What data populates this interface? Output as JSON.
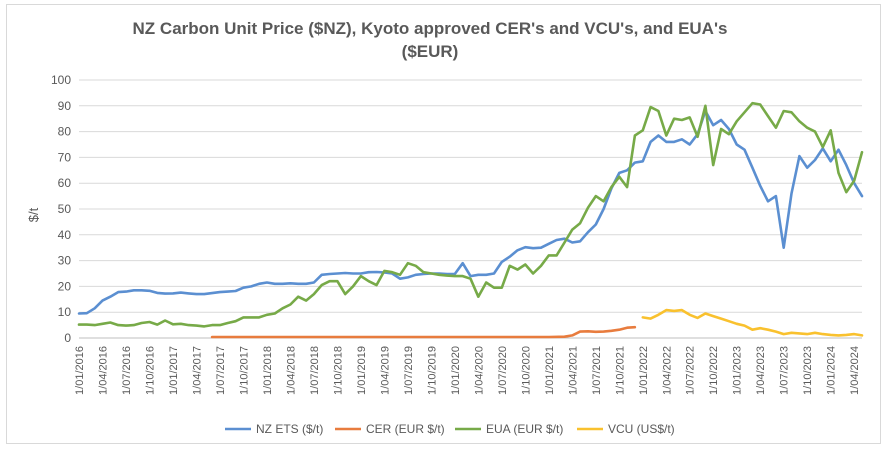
{
  "chart_data": {
    "type": "line",
    "title_line1": "NZ Carbon Unit Price ($NZ), Kyoto approved CER's and VCU's, and EUA's",
    "title_line2": "($EUR)",
    "ylabel": "$/t",
    "xlabel": "",
    "ylim": [
      0,
      100
    ],
    "yticks": [
      0,
      10,
      20,
      30,
      40,
      50,
      60,
      70,
      80,
      90,
      100
    ],
    "grid": true,
    "legend_position": "bottom",
    "x_start_month_index": 0,
    "x_end_month_index": 99,
    "x_tick_labels": [
      "1/01/2016",
      "1/04/2016",
      "1/07/2016",
      "1/10/2016",
      "1/01/2017",
      "1/04/2017",
      "1/07/2017",
      "1/10/2017",
      "1/01/2018",
      "1/04/2018",
      "1/07/2018",
      "1/10/2018",
      "1/01/2019",
      "1/04/2019",
      "1/07/2019",
      "1/10/2019",
      "1/01/2020",
      "1/04/2020",
      "1/07/2020",
      "1/10/2020",
      "1/01/2021",
      "1/04/2021",
      "1/07/2021",
      "1/10/2021",
      "1/01/2022",
      "1/04/2022",
      "1/07/2022",
      "1/10/2022",
      "1/01/2023",
      "1/04/2023",
      "1/07/2023",
      "1/10/2023",
      "1/01/2024",
      "1/04/2024"
    ],
    "x_tick_month_index": [
      0,
      3,
      6,
      9,
      12,
      15,
      18,
      21,
      24,
      27,
      30,
      33,
      36,
      39,
      42,
      45,
      48,
      51,
      54,
      57,
      60,
      63,
      66,
      69,
      72,
      75,
      78,
      81,
      84,
      87,
      90,
      93,
      96,
      99
    ],
    "series": [
      {
        "name": "NZ ETS ($/t)",
        "color": "#5b8fd1",
        "points": [
          [
            0,
            9.5
          ],
          [
            1,
            9.6
          ],
          [
            2,
            11.5
          ],
          [
            3,
            14.5
          ],
          [
            4,
            16
          ],
          [
            5,
            17.8
          ],
          [
            6,
            18
          ],
          [
            7,
            18.5
          ],
          [
            8,
            18.5
          ],
          [
            9,
            18.3
          ],
          [
            10,
            17.5
          ],
          [
            11,
            17.2
          ],
          [
            12,
            17.3
          ],
          [
            13,
            17.6
          ],
          [
            14,
            17.3
          ],
          [
            15,
            17
          ],
          [
            16,
            17
          ],
          [
            17,
            17.4
          ],
          [
            18,
            17.8
          ],
          [
            19,
            18
          ],
          [
            20,
            18.2
          ],
          [
            21,
            19.5
          ],
          [
            22,
            20
          ],
          [
            23,
            21
          ],
          [
            24,
            21.5
          ],
          [
            25,
            21
          ],
          [
            26,
            21
          ],
          [
            27,
            21.2
          ],
          [
            28,
            21
          ],
          [
            29,
            21
          ],
          [
            30,
            21.5
          ],
          [
            31,
            24.5
          ],
          [
            32,
            24.8
          ],
          [
            33,
            25
          ],
          [
            34,
            25.2
          ],
          [
            35,
            25
          ],
          [
            36,
            25
          ],
          [
            37,
            25.5
          ],
          [
            38,
            25.6
          ],
          [
            39,
            25.4
          ],
          [
            40,
            25
          ],
          [
            41,
            23
          ],
          [
            42,
            23.5
          ],
          [
            43,
            24.5
          ],
          [
            44,
            24.8
          ],
          [
            45,
            25
          ],
          [
            46,
            25
          ],
          [
            47,
            24.8
          ],
          [
            48,
            24.8
          ],
          [
            49,
            29
          ],
          [
            50,
            24
          ],
          [
            51,
            24.5
          ],
          [
            52,
            24.5
          ],
          [
            53,
            25
          ],
          [
            54,
            29.5
          ],
          [
            55,
            31.5
          ],
          [
            56,
            34
          ],
          [
            57,
            35.2
          ],
          [
            58,
            34.8
          ],
          [
            59,
            35
          ],
          [
            60,
            36.5
          ],
          [
            61,
            38
          ],
          [
            62,
            38.5
          ],
          [
            63,
            37
          ],
          [
            64,
            37.5
          ],
          [
            65,
            41
          ],
          [
            66,
            44
          ],
          [
            67,
            50
          ],
          [
            68,
            58
          ],
          [
            69,
            64
          ],
          [
            70,
            65
          ],
          [
            71,
            68
          ],
          [
            72,
            68.5
          ],
          [
            73,
            76
          ],
          [
            74,
            78.5
          ],
          [
            75,
            76
          ],
          [
            76,
            76
          ],
          [
            77,
            77
          ],
          [
            78,
            75
          ],
          [
            79,
            79
          ],
          [
            80,
            88
          ],
          [
            81,
            82.5
          ],
          [
            82,
            84.5
          ],
          [
            83,
            81
          ],
          [
            84,
            75
          ],
          [
            85,
            73
          ],
          [
            86,
            66
          ],
          [
            87,
            59
          ],
          [
            88,
            53
          ],
          [
            89,
            55
          ],
          [
            90,
            35
          ],
          [
            91,
            56
          ],
          [
            92,
            70.5
          ],
          [
            93,
            66
          ],
          [
            94,
            69
          ],
          [
            95,
            73.5
          ],
          [
            96,
            68.5
          ],
          [
            97,
            73
          ],
          [
            98,
            67
          ],
          [
            99,
            60
          ],
          [
            100,
            55
          ]
        ]
      },
      {
        "name": "CER (EUR $/t)",
        "color": "#e87c3e",
        "points": [
          [
            17,
            0.4
          ],
          [
            20,
            0.4
          ],
          [
            25,
            0.4
          ],
          [
            30,
            0.4
          ],
          [
            35,
            0.4
          ],
          [
            40,
            0.4
          ],
          [
            45,
            0.4
          ],
          [
            50,
            0.4
          ],
          [
            55,
            0.4
          ],
          [
            60,
            0.4
          ],
          [
            62,
            0.5
          ],
          [
            63,
            1
          ],
          [
            64,
            2.5
          ],
          [
            65,
            2.6
          ],
          [
            66,
            2.4
          ],
          [
            67,
            2.5
          ],
          [
            68,
            2.8
          ],
          [
            69,
            3.2
          ],
          [
            70,
            4
          ],
          [
            71,
            4.2
          ]
        ]
      },
      {
        "name": "EUA (EUR $/t)",
        "color": "#77aa48",
        "points": [
          [
            0,
            5.2
          ],
          [
            1,
            5.2
          ],
          [
            2,
            5
          ],
          [
            3,
            5.5
          ],
          [
            4,
            6
          ],
          [
            5,
            5
          ],
          [
            6,
            4.8
          ],
          [
            7,
            5
          ],
          [
            8,
            5.8
          ],
          [
            9,
            6.2
          ],
          [
            10,
            5.2
          ],
          [
            11,
            6.8
          ],
          [
            12,
            5.3
          ],
          [
            13,
            5.5
          ],
          [
            14,
            5
          ],
          [
            15,
            4.8
          ],
          [
            16,
            4.5
          ],
          [
            17,
            5
          ],
          [
            18,
            5
          ],
          [
            19,
            5.8
          ],
          [
            20,
            6.5
          ],
          [
            21,
            8
          ],
          [
            22,
            8
          ],
          [
            23,
            8
          ],
          [
            24,
            9
          ],
          [
            25,
            9.5
          ],
          [
            26,
            11.5
          ],
          [
            27,
            13
          ],
          [
            28,
            16
          ],
          [
            29,
            14.5
          ],
          [
            30,
            17
          ],
          [
            31,
            20.5
          ],
          [
            32,
            22
          ],
          [
            33,
            22
          ],
          [
            34,
            17
          ],
          [
            35,
            20
          ],
          [
            36,
            24
          ],
          [
            37,
            22
          ],
          [
            38,
            20.5
          ],
          [
            39,
            26
          ],
          [
            40,
            25.5
          ],
          [
            41,
            24.5
          ],
          [
            42,
            29
          ],
          [
            43,
            28
          ],
          [
            44,
            25.5
          ],
          [
            45,
            25
          ],
          [
            46,
            24.5
          ],
          [
            47,
            24.2
          ],
          [
            48,
            24
          ],
          [
            49,
            24
          ],
          [
            50,
            23
          ],
          [
            51,
            16
          ],
          [
            52,
            21.5
          ],
          [
            53,
            19.5
          ],
          [
            54,
            19.5
          ],
          [
            55,
            28
          ],
          [
            56,
            26.5
          ],
          [
            57,
            28.5
          ],
          [
            58,
            25
          ],
          [
            59,
            28
          ],
          [
            60,
            32
          ],
          [
            61,
            32
          ],
          [
            62,
            37
          ],
          [
            63,
            42
          ],
          [
            64,
            44.5
          ],
          [
            65,
            50.5
          ],
          [
            66,
            55
          ],
          [
            67,
            53
          ],
          [
            68,
            58.5
          ],
          [
            69,
            62.5
          ],
          [
            70,
            58.5
          ],
          [
            71,
            78.5
          ],
          [
            72,
            80.5
          ],
          [
            73,
            89.5
          ],
          [
            74,
            88
          ],
          [
            75,
            78.5
          ],
          [
            76,
            85
          ],
          [
            77,
            84.5
          ],
          [
            78,
            85.5
          ],
          [
            79,
            78
          ],
          [
            80,
            90
          ],
          [
            81,
            67
          ],
          [
            82,
            81
          ],
          [
            83,
            79
          ],
          [
            84,
            84
          ],
          [
            85,
            87.5
          ],
          [
            86,
            91
          ],
          [
            87,
            90.5
          ],
          [
            88,
            86
          ],
          [
            89,
            81.5
          ],
          [
            90,
            88
          ],
          [
            91,
            87.5
          ],
          [
            92,
            84
          ],
          [
            93,
            81.5
          ],
          [
            94,
            80
          ],
          [
            95,
            74
          ],
          [
            96,
            80.5
          ],
          [
            97,
            64
          ],
          [
            98,
            56.5
          ],
          [
            99,
            61
          ],
          [
            100,
            72
          ]
        ]
      },
      {
        "name": "VCU (US$/t)",
        "color": "#f9c12e",
        "points": [
          [
            72,
            8
          ],
          [
            73,
            7.5
          ],
          [
            74,
            9
          ],
          [
            75,
            10.8
          ],
          [
            76,
            10.5
          ],
          [
            77,
            10.8
          ],
          [
            78,
            9
          ],
          [
            79,
            7.8
          ],
          [
            80,
            9.5
          ],
          [
            81,
            8.5
          ],
          [
            82,
            7.5
          ],
          [
            83,
            6.5
          ],
          [
            84,
            5.5
          ],
          [
            85,
            4.8
          ],
          [
            86,
            3.2
          ],
          [
            87,
            3.8
          ],
          [
            88,
            3.2
          ],
          [
            89,
            2.5
          ],
          [
            90,
            1.5
          ],
          [
            91,
            2
          ],
          [
            92,
            1.8
          ],
          [
            93,
            1.5
          ],
          [
            94,
            2
          ],
          [
            95,
            1.5
          ],
          [
            96,
            1.2
          ],
          [
            97,
            1
          ],
          [
            98,
            1.2
          ],
          [
            99,
            1.5
          ],
          [
            100,
            1
          ]
        ]
      }
    ]
  }
}
